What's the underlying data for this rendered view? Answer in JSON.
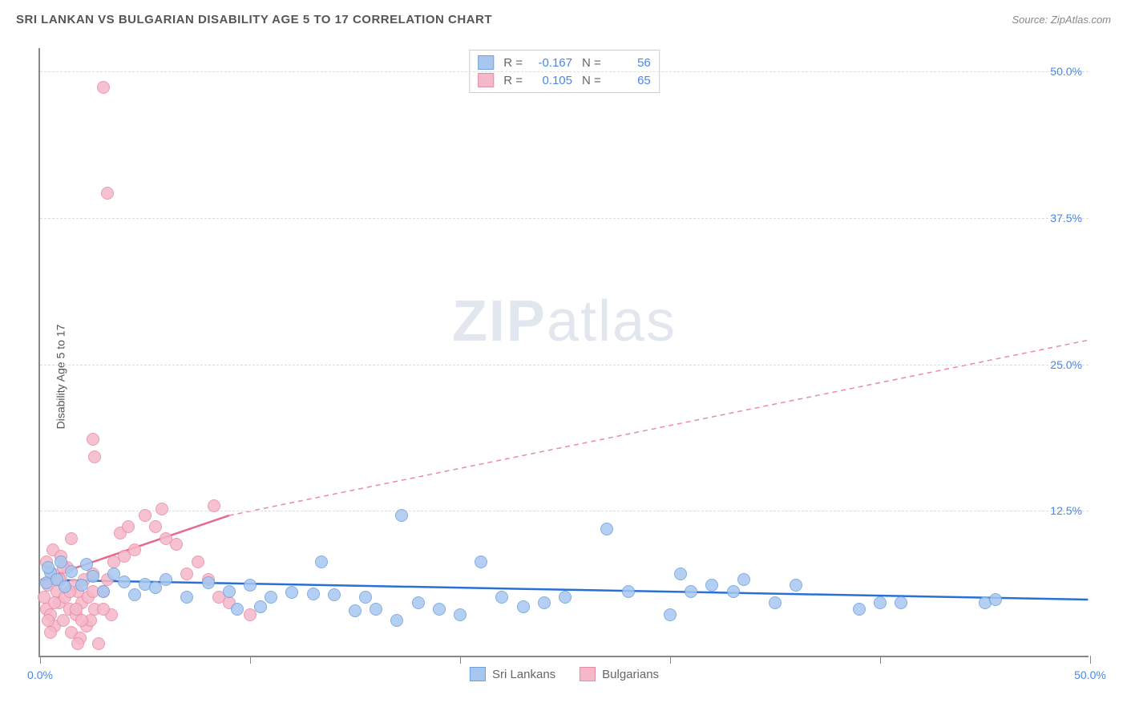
{
  "title": "SRI LANKAN VS BULGARIAN DISABILITY AGE 5 TO 17 CORRELATION CHART",
  "source": "Source: ZipAtlas.com",
  "ylabel": "Disability Age 5 to 17",
  "watermark_zip": "ZIP",
  "watermark_atlas": "atlas",
  "chart": {
    "type": "scatter",
    "xlim": [
      0,
      50
    ],
    "ylim": [
      0,
      52
    ],
    "xtick_positions": [
      0,
      10,
      20,
      30,
      40,
      50
    ],
    "xtick_labels": [
      "0.0%",
      "",
      "",
      "",
      "",
      "50.0%"
    ],
    "ytick_positions": [
      12.5,
      25.0,
      37.5,
      50.0
    ],
    "ytick_labels": [
      "12.5%",
      "25.0%",
      "37.5%",
      "50.0%"
    ],
    "grid_color": "#dddddd",
    "background_color": "#ffffff",
    "axis_color": "#888888",
    "tick_label_color": "#4a86e8",
    "marker_radius": 8,
    "series": [
      {
        "name": "Sri Lankans",
        "fill": "#a7c7f0",
        "stroke": "#6fa0de",
        "r_label": "R =",
        "r_value": "-0.167",
        "n_label": "N =",
        "n_value": "56",
        "trend": {
          "x1": 0,
          "y1": 6.5,
          "x2": 50,
          "y2": 4.8,
          "color": "#2a6fd6",
          "width": 2.5,
          "dash": ""
        },
        "points": [
          [
            0.3,
            6.2
          ],
          [
            0.5,
            7.1
          ],
          [
            0.8,
            6.5
          ],
          [
            1.2,
            5.9
          ],
          [
            1.5,
            7.2
          ],
          [
            2.0,
            6.0
          ],
          [
            2.5,
            6.8
          ],
          [
            3.0,
            5.5
          ],
          [
            3.5,
            7.0
          ],
          [
            4.0,
            6.3
          ],
          [
            4.5,
            5.2
          ],
          [
            5.0,
            6.1
          ],
          [
            5.5,
            5.8
          ],
          [
            6.0,
            6.5
          ],
          [
            7.0,
            5.0
          ],
          [
            8.0,
            6.2
          ],
          [
            9.0,
            5.5
          ],
          [
            9.4,
            4.0
          ],
          [
            10.0,
            6.0
          ],
          [
            10.5,
            4.2
          ],
          [
            11.0,
            5.0
          ],
          [
            12.0,
            5.4
          ],
          [
            13.0,
            5.3
          ],
          [
            13.4,
            8.0
          ],
          [
            14.0,
            5.2
          ],
          [
            15.0,
            3.8
          ],
          [
            15.5,
            5.0
          ],
          [
            16.0,
            4.0
          ],
          [
            17.0,
            3.0
          ],
          [
            17.2,
            12.0
          ],
          [
            18.0,
            4.5
          ],
          [
            19.0,
            4.0
          ],
          [
            20.0,
            3.5
          ],
          [
            21.0,
            8.0
          ],
          [
            22.0,
            5.0
          ],
          [
            23.0,
            4.2
          ],
          [
            24.0,
            4.5
          ],
          [
            25.0,
            5.0
          ],
          [
            27.0,
            10.8
          ],
          [
            28.0,
            5.5
          ],
          [
            30.0,
            3.5
          ],
          [
            30.5,
            7.0
          ],
          [
            31.0,
            5.5
          ],
          [
            32.0,
            6.0
          ],
          [
            33.0,
            5.5
          ],
          [
            33.5,
            6.5
          ],
          [
            35.0,
            4.5
          ],
          [
            36.0,
            6.0
          ],
          [
            39.0,
            4.0
          ],
          [
            40.0,
            4.5
          ],
          [
            41.0,
            4.5
          ],
          [
            45.0,
            4.5
          ],
          [
            45.5,
            4.8
          ],
          [
            0.4,
            7.5
          ],
          [
            1.0,
            8.0
          ],
          [
            2.2,
            7.8
          ]
        ]
      },
      {
        "name": "Bulgarians",
        "fill": "#f5b8c8",
        "stroke": "#e88ba6",
        "r_label": "R =",
        "r_value": "0.105",
        "n_label": "N =",
        "n_value": "65",
        "trend_solid": {
          "x1": 0,
          "y1": 6.5,
          "x2": 9,
          "y2": 12.0,
          "color": "#e66a8f",
          "width": 2.5,
          "dash": ""
        },
        "trend_dash": {
          "x1": 9,
          "y1": 12.0,
          "x2": 50,
          "y2": 27.0,
          "color": "#e88ba6",
          "width": 1.5,
          "dash": "6,5"
        },
        "points": [
          [
            0.2,
            5.0
          ],
          [
            0.3,
            4.0
          ],
          [
            0.4,
            6.0
          ],
          [
            0.5,
            3.5
          ],
          [
            0.6,
            7.0
          ],
          [
            0.7,
            2.5
          ],
          [
            0.8,
            5.5
          ],
          [
            0.9,
            4.5
          ],
          [
            1.0,
            6.5
          ],
          [
            1.1,
            3.0
          ],
          [
            1.2,
            5.0
          ],
          [
            1.3,
            7.5
          ],
          [
            1.4,
            4.0
          ],
          [
            1.5,
            2.0
          ],
          [
            1.6,
            6.0
          ],
          [
            1.7,
            3.5
          ],
          [
            1.8,
            5.5
          ],
          [
            1.9,
            1.5
          ],
          [
            2.0,
            4.5
          ],
          [
            2.1,
            6.5
          ],
          [
            2.2,
            2.5
          ],
          [
            2.3,
            5.0
          ],
          [
            2.4,
            3.0
          ],
          [
            2.5,
            7.0
          ],
          [
            2.6,
            4.0
          ],
          [
            2.8,
            1.0
          ],
          [
            3.0,
            5.5
          ],
          [
            3.2,
            6.5
          ],
          [
            3.4,
            3.5
          ],
          [
            2.5,
            18.5
          ],
          [
            2.6,
            17.0
          ],
          [
            3.0,
            48.5
          ],
          [
            3.2,
            39.5
          ],
          [
            3.5,
            8.0
          ],
          [
            4.0,
            8.5
          ],
          [
            4.5,
            9.0
          ],
          [
            5.0,
            12.0
          ],
          [
            5.5,
            11.0
          ],
          [
            5.8,
            12.5
          ],
          [
            6.0,
            10.0
          ],
          [
            6.5,
            9.5
          ],
          [
            7.0,
            7.0
          ],
          [
            7.5,
            8.0
          ],
          [
            8.0,
            6.5
          ],
          [
            8.3,
            12.8
          ],
          [
            8.5,
            5.0
          ],
          [
            9.0,
            4.5
          ],
          [
            0.3,
            8.0
          ],
          [
            0.6,
            9.0
          ],
          [
            1.0,
            8.5
          ],
          [
            1.5,
            10.0
          ],
          [
            3.8,
            10.5
          ],
          [
            4.2,
            11.0
          ],
          [
            0.4,
            3.0
          ],
          [
            0.7,
            4.5
          ],
          [
            0.9,
            6.5
          ],
          [
            1.1,
            7.5
          ],
          [
            1.4,
            5.5
          ],
          [
            1.7,
            4.0
          ],
          [
            2.0,
            3.0
          ],
          [
            2.5,
            5.5
          ],
          [
            3.0,
            4.0
          ],
          [
            10.0,
            3.5
          ],
          [
            0.5,
            2.0
          ],
          [
            1.8,
            1.0
          ]
        ]
      }
    ]
  }
}
